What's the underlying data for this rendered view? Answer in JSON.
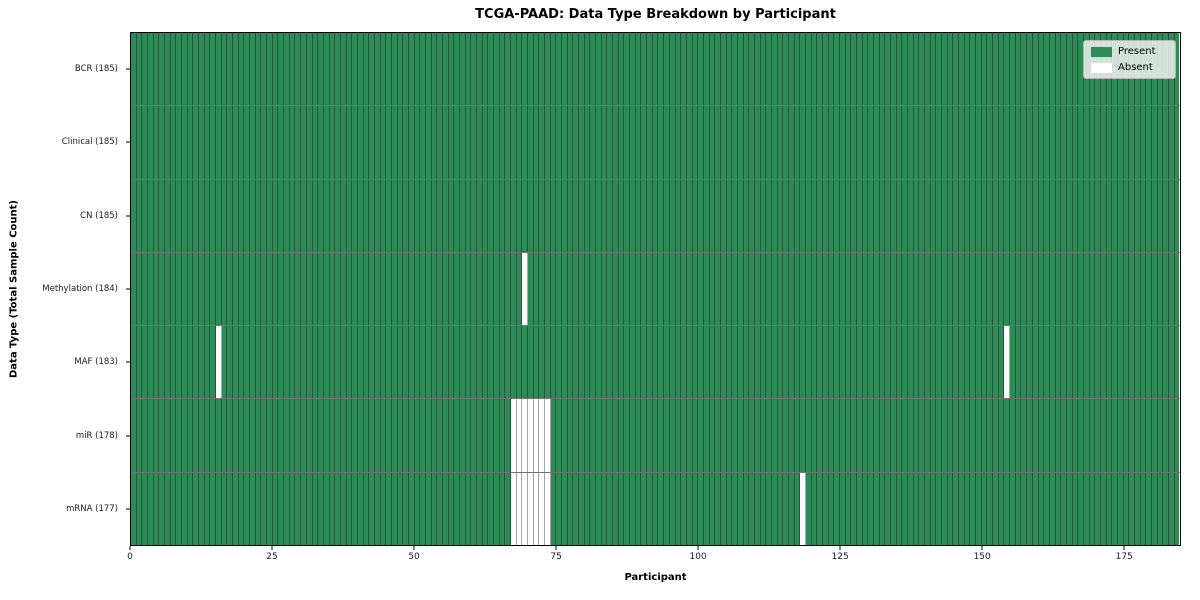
{
  "chart_data": {
    "type": "heatmap",
    "title": "TCGA-PAAD: Data Type Breakdown by Participant",
    "xlabel": "Participant",
    "ylabel": "Data Type (Total Sample Count)",
    "n_participants": 185,
    "x_ticks": [
      0,
      25,
      50,
      75,
      100,
      125,
      150,
      175
    ],
    "xlim": [
      0,
      185
    ],
    "grid": true,
    "legend_position": "upper right",
    "legend": [
      {
        "label": "Present",
        "color": "#2e8b57"
      },
      {
        "label": "Absent",
        "color": "#ffffff"
      }
    ],
    "rows": [
      {
        "label": "BCR (185)",
        "data_type": "BCR",
        "total": 185,
        "absent_participants": []
      },
      {
        "label": "Clinical (185)",
        "data_type": "Clinical",
        "total": 185,
        "absent_participants": []
      },
      {
        "label": "CN (185)",
        "data_type": "CN",
        "total": 185,
        "absent_participants": []
      },
      {
        "label": "Methylation (184)",
        "data_type": "Methylation",
        "total": 184,
        "absent_participants": [
          69
        ]
      },
      {
        "label": "MAF (183)",
        "data_type": "MAF",
        "total": 183,
        "absent_participants": [
          15,
          154
        ]
      },
      {
        "label": "miR (178)",
        "data_type": "miR",
        "total": 178,
        "absent_participants": [
          67,
          68,
          69,
          70,
          71,
          72,
          73
        ]
      },
      {
        "label": "mRNA (177)",
        "data_type": "mRNA",
        "total": 177,
        "absent_participants": [
          67,
          68,
          69,
          70,
          71,
          72,
          73,
          118
        ]
      }
    ]
  }
}
